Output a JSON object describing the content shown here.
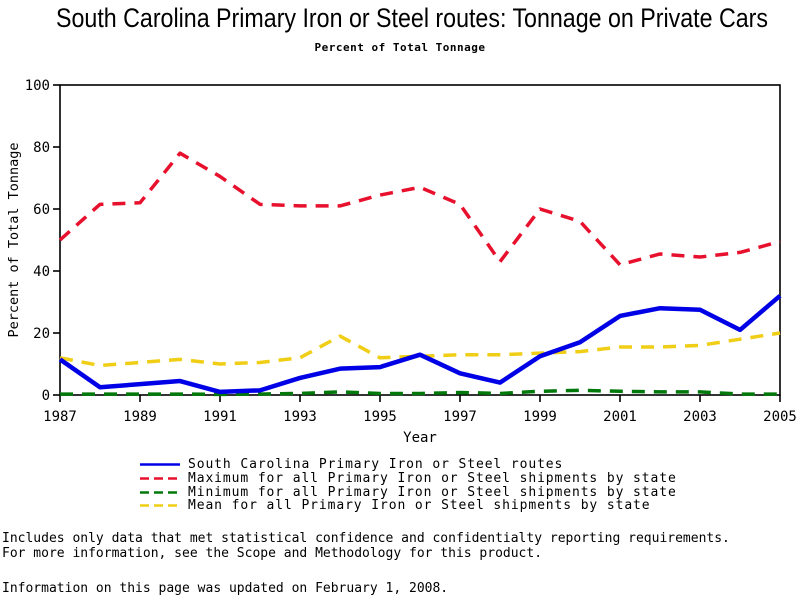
{
  "title": "South Carolina Primary Iron or Steel routes: Tonnage on Private Cars",
  "subtitle": "Percent of Total Tonnage",
  "chart_data": {
    "type": "line",
    "x": [
      1987,
      1988,
      1989,
      1990,
      1991,
      1992,
      1993,
      1994,
      1995,
      1996,
      1997,
      1998,
      1999,
      2000,
      2001,
      2002,
      2003,
      2004,
      2005
    ],
    "xlabel": "Year",
    "ylabel": "Percent of Total Tonnage",
    "xlim": [
      1987,
      2005
    ],
    "ylim": [
      0,
      100
    ],
    "x_ticks": [
      1987,
      1989,
      1991,
      1993,
      1995,
      1997,
      1999,
      2001,
      2003,
      2005
    ],
    "y_ticks": [
      0,
      20,
      40,
      60,
      80,
      100
    ],
    "grid": false,
    "legend_position": "bottom",
    "series": [
      {
        "name": "South Carolina Primary Iron or Steel routes",
        "color": "#0000e6",
        "style": "solid",
        "values": [
          11.5,
          2.5,
          3.5,
          4.5,
          1,
          1.5,
          5.5,
          8.5,
          9,
          13,
          7,
          4,
          12.5,
          17,
          25.5,
          28,
          27.5,
          21,
          32
        ]
      },
      {
        "name": "Maximum for all Primary Iron or Steel shipments by state",
        "color": "#e8112d",
        "style": "dashed",
        "values": [
          50,
          61.5,
          62,
          78,
          70.5,
          61.5,
          61,
          61,
          64.5,
          67,
          61.5,
          43,
          60,
          56,
          42,
          45.5,
          44.5,
          46,
          49.5
        ]
      },
      {
        "name": "Minimum for all Primary Iron or Steel shipments by state",
        "color": "#00780a",
        "style": "dashed",
        "values": [
          0.3,
          0.3,
          0.3,
          0.3,
          0.2,
          0.3,
          0.5,
          1,
          0.5,
          0.5,
          0.8,
          0.5,
          1.2,
          1.5,
          1.2,
          1,
          1,
          0.3,
          0.3
        ]
      },
      {
        "name": "Mean for all Primary Iron or Steel shipments by state",
        "color": "#f0ce15",
        "style": "dashed",
        "values": [
          12,
          9.5,
          10.5,
          11.5,
          10,
          10.5,
          12,
          19,
          12,
          12.5,
          13,
          13,
          13.5,
          14,
          15.5,
          15.5,
          16,
          18,
          20
        ]
      }
    ]
  },
  "footer": {
    "note_line1": "Includes only data that met statistical confidence and confidentialty reporting requirements.",
    "note_line2": "For more information, see the Scope and Methodology for this product.",
    "updated": "Information on this page was updated on February 1, 2008."
  }
}
